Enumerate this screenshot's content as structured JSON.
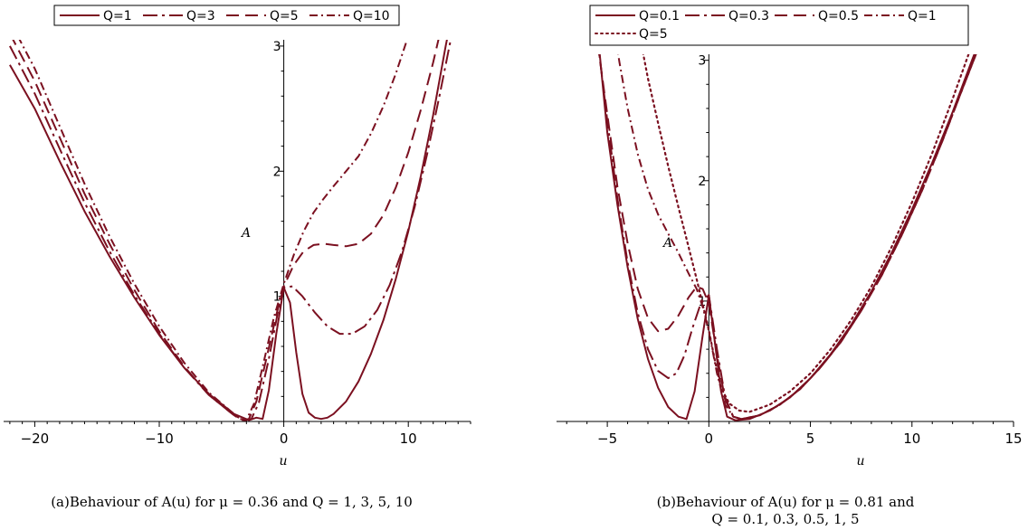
{
  "colors": {
    "curve": "#7b1020",
    "axis": "#000000",
    "background": "#ffffff"
  },
  "chart_data": [
    {
      "type": "line",
      "panel": "a",
      "title": "",
      "xlabel": "u",
      "ylabel": "A",
      "xlim": [
        -22.5,
        15
      ],
      "ylim": [
        0,
        3.05
      ],
      "xticks": [
        -20,
        -10,
        0,
        10
      ],
      "xtick_labels": [
        "−20",
        "−10",
        "0",
        "10"
      ],
      "yticks": [
        1,
        2,
        3
      ],
      "ytick_labels": [
        "1",
        "2",
        "3"
      ],
      "grid": false,
      "legend_placement": "top-left",
      "caption": "(a)Behaviour of A(u) for μ = 0.36 and Q = 1, 3, 5, 10",
      "series": [
        {
          "name": "Q=1",
          "style": "solid",
          "x": [
            -22,
            -20,
            -18,
            -16,
            -14,
            -12,
            -10,
            -8,
            -6,
            -4,
            -2.8,
            -2.2,
            -1.7,
            -1.2,
            -0.6,
            0,
            0.5,
            1,
            1.5,
            2,
            2.5,
            3,
            3.5,
            4,
            5,
            6,
            7,
            8,
            9,
            10,
            11,
            12,
            13,
            14
          ],
          "y": [
            2.85,
            2.5,
            2.08,
            1.68,
            1.32,
            0.99,
            0.69,
            0.43,
            0.22,
            0.06,
            0.01,
            0.03,
            0.02,
            0.25,
            0.7,
            1.07,
            0.95,
            0.55,
            0.22,
            0.07,
            0.03,
            0.02,
            0.03,
            0.06,
            0.16,
            0.32,
            0.54,
            0.81,
            1.14,
            1.52,
            1.96,
            2.45,
            3.0,
            3.5
          ]
        },
        {
          "name": "Q=3",
          "style": "longdash-dot",
          "x": [
            -22,
            -20,
            -18,
            -16,
            -14,
            -12,
            -10,
            -8,
            -6,
            -4,
            -3.2,
            -2.6,
            -2.0,
            -1.2,
            -0.5,
            0,
            0.7,
            1.5,
            2.5,
            3.5,
            4.5,
            5.5,
            6.5,
            7.5,
            8.5,
            9.5,
            10.5,
            11.5,
            12.5,
            13.5,
            14.5
          ],
          "y": [
            3.0,
            2.62,
            2.18,
            1.75,
            1.36,
            1.01,
            0.7,
            0.43,
            0.21,
            0.05,
            0.01,
            0.02,
            0.15,
            0.5,
            0.86,
            1.07,
            1.08,
            1.0,
            0.87,
            0.76,
            0.7,
            0.7,
            0.76,
            0.89,
            1.09,
            1.36,
            1.71,
            2.13,
            2.6,
            3.1,
            3.6
          ]
        },
        {
          "name": "Q=5",
          "style": "dash",
          "x": [
            -22,
            -20,
            -18,
            -16,
            -14,
            -12,
            -10,
            -8,
            -6,
            -4,
            -3.4,
            -2.8,
            -2.2,
            -1.4,
            -0.6,
            0,
            0.8,
            1.6,
            2.4,
            3.2,
            4,
            5,
            6,
            7,
            8,
            9,
            10,
            11,
            12,
            13,
            14
          ],
          "y": [
            3.1,
            2.72,
            2.27,
            1.82,
            1.42,
            1.05,
            0.72,
            0.44,
            0.21,
            0.05,
            0.01,
            0.02,
            0.16,
            0.5,
            0.85,
            1.08,
            1.25,
            1.36,
            1.41,
            1.42,
            1.41,
            1.4,
            1.42,
            1.5,
            1.65,
            1.87,
            2.15,
            2.49,
            2.87,
            3.3,
            3.75
          ]
        },
        {
          "name": "Q=10",
          "style": "dash-dot",
          "x": [
            -22,
            -20,
            -18,
            -16,
            -14,
            -12,
            -10,
            -8,
            -6,
            -4,
            -3.5,
            -3.0,
            -2.4,
            -1.6,
            -0.8,
            0,
            0.8,
            1.6,
            2.4,
            3.2,
            4,
            5,
            6,
            7,
            8,
            9,
            10,
            11
          ],
          "y": [
            3.2,
            2.82,
            2.36,
            1.9,
            1.48,
            1.1,
            0.76,
            0.47,
            0.23,
            0.06,
            0.02,
            0.01,
            0.14,
            0.48,
            0.83,
            1.1,
            1.33,
            1.52,
            1.67,
            1.78,
            1.88,
            2.0,
            2.12,
            2.3,
            2.52,
            2.78,
            3.08,
            3.4
          ]
        }
      ]
    },
    {
      "type": "line",
      "panel": "b",
      "title": "",
      "xlabel": "u",
      "ylabel": "A",
      "xlim": [
        -7.5,
        15
      ],
      "ylim": [
        0,
        3.05
      ],
      "xticks": [
        -5,
        0,
        5,
        10,
        15
      ],
      "xtick_labels": [
        "−5",
        "0",
        "5",
        "10",
        "15"
      ],
      "yticks": [
        1,
        2,
        3
      ],
      "ytick_labels": [
        "1",
        "2",
        "3"
      ],
      "grid": false,
      "legend_placement": "top-left",
      "caption": "(b)Behaviour of A(u) for μ = 0.81 and Q = 0.1, 0.3, 0.5, 1, 5",
      "series": [
        {
          "name": "Q=0.1",
          "style": "solid",
          "x": [
            -5.4,
            -5,
            -4.5,
            -4,
            -3.5,
            -3,
            -2.5,
            -2,
            -1.5,
            -1.1,
            -0.7,
            -0.3,
            0,
            0.3,
            0.6,
            0.9,
            1.3,
            2,
            3,
            4,
            5,
            6,
            7,
            8,
            9,
            10,
            11,
            12,
            13,
            14
          ],
          "y": [
            3.1,
            2.4,
            1.8,
            1.28,
            0.85,
            0.52,
            0.28,
            0.12,
            0.04,
            0.02,
            0.25,
            0.72,
            1.05,
            0.65,
            0.25,
            0.04,
            0.01,
            0.02,
            0.09,
            0.2,
            0.36,
            0.56,
            0.8,
            1.08,
            1.4,
            1.76,
            2.15,
            2.57,
            3.02,
            3.45
          ]
        },
        {
          "name": "Q=0.3",
          "style": "longdash-dot",
          "x": [
            -5.5,
            -5,
            -4.5,
            -4,
            -3.5,
            -3,
            -2.5,
            -2,
            -1.6,
            -1.2,
            -0.8,
            -0.4,
            0,
            0.4,
            0.8,
            1.2,
            1.6,
            2.5,
            3.5,
            4.5,
            5.5,
            6.5,
            7.5,
            8.5,
            9.5,
            10.5,
            11.5,
            12.5,
            13.5,
            14.5
          ],
          "y": [
            3.2,
            2.5,
            1.85,
            1.32,
            0.9,
            0.6,
            0.42,
            0.36,
            0.4,
            0.55,
            0.78,
            0.98,
            1.05,
            0.6,
            0.2,
            0.04,
            0.02,
            0.05,
            0.14,
            0.27,
            0.45,
            0.66,
            0.92,
            1.21,
            1.55,
            1.92,
            2.33,
            2.77,
            3.2,
            3.6
          ]
        },
        {
          "name": "Q=0.5",
          "style": "dash",
          "x": [
            -5.6,
            -5,
            -4.5,
            -4,
            -3.5,
            -3,
            -2.5,
            -2,
            -1.5,
            -1,
            -0.6,
            -0.3,
            0,
            0.4,
            0.8,
            1.2,
            1.6,
            2.5,
            3.5,
            4.5,
            5.5,
            6.5,
            7.5,
            8.5,
            9.5,
            10.5,
            11.5,
            12.5,
            13.5,
            14.5
          ],
          "y": [
            3.3,
            2.55,
            1.95,
            1.48,
            1.1,
            0.86,
            0.75,
            0.77,
            0.88,
            1.03,
            1.12,
            1.1,
            0.98,
            0.55,
            0.18,
            0.04,
            0.02,
            0.05,
            0.14,
            0.27,
            0.45,
            0.66,
            0.92,
            1.21,
            1.55,
            1.92,
            2.33,
            2.77,
            3.2,
            3.6
          ]
        },
        {
          "name": "Q=1",
          "style": "dash-dot",
          "x": [
            -4.7,
            -4.4,
            -4,
            -3.5,
            -3,
            -2.5,
            -2,
            -1.5,
            -1,
            -0.6,
            -0.3,
            0,
            0.4,
            0.8,
            1.2,
            1.6,
            2.5,
            3.5,
            4.5,
            5.5,
            6.5,
            7.5,
            8.5,
            9.5,
            10.5,
            11.5,
            12.5,
            13.5,
            14.5
          ],
          "y": [
            3.3,
            2.98,
            2.6,
            2.22,
            1.93,
            1.72,
            1.56,
            1.4,
            1.23,
            1.1,
            0.95,
            0.75,
            0.4,
            0.14,
            0.04,
            0.02,
            0.05,
            0.14,
            0.27,
            0.45,
            0.66,
            0.92,
            1.21,
            1.55,
            1.92,
            2.33,
            2.77,
            3.2,
            3.6
          ]
        },
        {
          "name": "Q=5",
          "style": "dot",
          "x": [
            -3.4,
            -3.0,
            -2.5,
            -2,
            -1.5,
            -1,
            -0.6,
            -0.3,
            0,
            0.3,
            0.6,
            1,
            1.5,
            2,
            3,
            4,
            5,
            6,
            7,
            8,
            9,
            10,
            11,
            12,
            13,
            14
          ],
          "y": [
            3.2,
            2.85,
            2.48,
            2.12,
            1.78,
            1.45,
            1.18,
            0.97,
            0.76,
            0.5,
            0.28,
            0.15,
            0.09,
            0.08,
            0.14,
            0.25,
            0.4,
            0.6,
            0.84,
            1.12,
            1.45,
            1.82,
            2.23,
            2.68,
            3.15,
            3.65
          ]
        }
      ]
    }
  ]
}
